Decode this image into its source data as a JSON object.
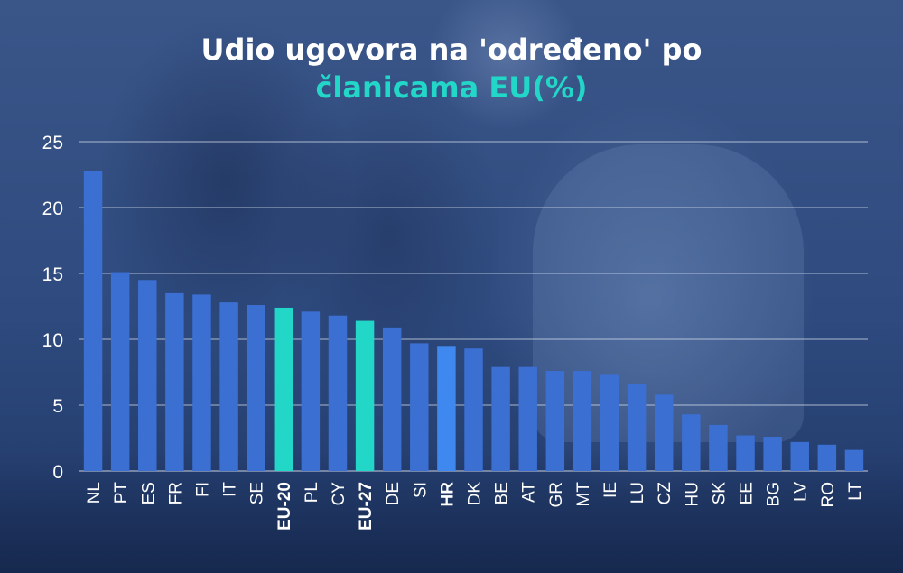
{
  "title_line1": "Udio ugovora na 'određeno' po",
  "title_line2": "članicama EU(%)",
  "colors": {
    "bar_default": "#3b6fd2",
    "bar_eu": "#22d6c8",
    "bar_hr": "#3f88f0",
    "grid": "#d8e0ee",
    "text": "#ffffff"
  },
  "chart_data": {
    "type": "bar",
    "title": "Udio ugovora na 'određeno' po članicama EU(%)",
    "xlabel": "",
    "ylabel": "",
    "ylim": [
      0,
      25
    ],
    "yticks": [
      "0",
      "5",
      "10",
      "15",
      "20",
      "25"
    ],
    "grid": true,
    "categories": [
      "NL",
      "PT",
      "ES",
      "FR",
      "FI",
      "IT",
      "SE",
      "EU-20",
      "PL",
      "CY",
      "EU-27",
      "DE",
      "SI",
      "HR",
      "DK",
      "BE",
      "AT",
      "GR",
      "MT",
      "IE",
      "LU",
      "CZ",
      "HU",
      "SK",
      "EE",
      "BG",
      "LV",
      "RO",
      "LT"
    ],
    "values": [
      22.8,
      15.1,
      14.5,
      13.5,
      13.4,
      12.8,
      12.6,
      12.4,
      12.1,
      11.8,
      11.4,
      10.9,
      9.7,
      9.5,
      9.3,
      7.9,
      7.9,
      7.6,
      7.6,
      7.3,
      6.6,
      5.8,
      4.3,
      3.5,
      2.7,
      2.6,
      2.2,
      2.0,
      1.6
    ],
    "highlight": {
      "EU-20": "eu",
      "EU-27": "eu",
      "HR": "hr"
    },
    "bold_labels": [
      "EU-20",
      "EU-27",
      "HR"
    ]
  }
}
